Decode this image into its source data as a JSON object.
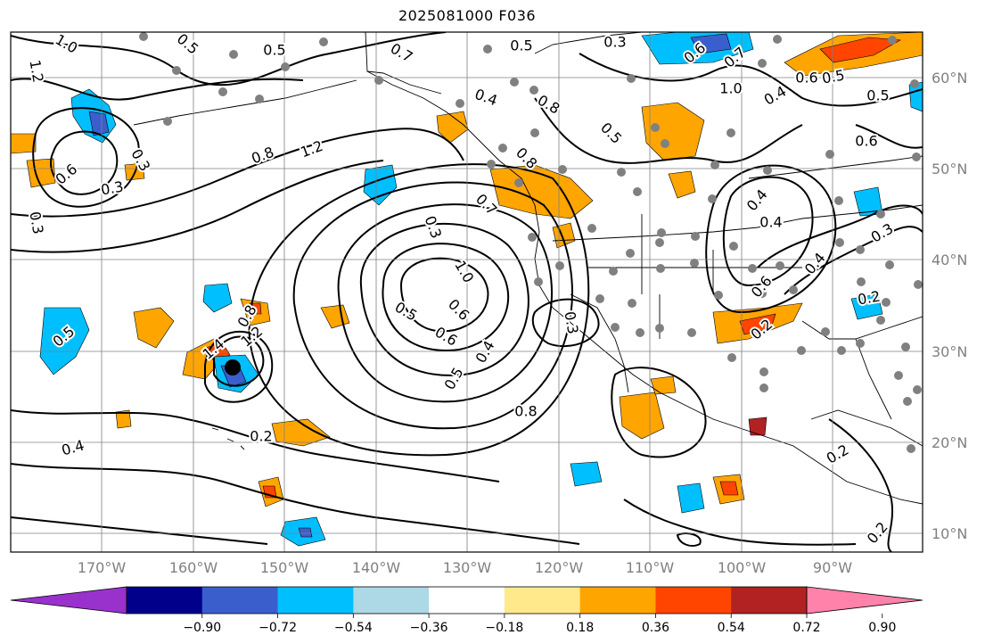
{
  "title": "2025081000 F036",
  "axes": {
    "longitude_labels": [
      "170°W",
      "160°W",
      "150°W",
      "140°W",
      "130°W",
      "120°W",
      "110°W",
      "100°W",
      "90°W"
    ],
    "latitude_labels": [
      "60°N",
      "50°N",
      "40°N",
      "30°N",
      "20°N",
      "10°N"
    ]
  },
  "colorbar": {
    "tick_labels": [
      "−0.90",
      "−0.72",
      "−0.54",
      "−0.36",
      "−0.18",
      "0.18",
      "0.36",
      "0.54",
      "0.72",
      "0.90"
    ],
    "colors": [
      "#9932CC",
      "#00008B",
      "#3A5FCD",
      "#00BFFF",
      "#ADD8E6",
      "#FFFFFF",
      "#FFE98A",
      "#FFA500",
      "#FF4500",
      "#B22222",
      "#FF82AB"
    ]
  },
  "contour_labels": [
    "1.0",
    "1.2",
    "0.5",
    "0.5",
    "0.7",
    "0.3",
    "0.8",
    "1.2",
    "0.6",
    "0.7",
    "1.0",
    "0.6",
    "0.5",
    "0.5",
    "0.4",
    "0.8",
    "0.5",
    "0.8",
    "0.7",
    "0.4",
    "0.5",
    "0.6",
    "0.6",
    "0.3",
    "0.3",
    "0.3",
    "0.3",
    "0.4",
    "0.4",
    "0.3",
    "0.4",
    "0.6",
    "0.2",
    "0.2",
    "0.5",
    "0.8",
    "1.2",
    "1.4",
    "1.0",
    "0.6",
    "0.5",
    "0.6",
    "0.5",
    "0.4",
    "0.8",
    "0.3",
    "0.2",
    "0.4",
    "0.2",
    "0.2"
  ]
}
